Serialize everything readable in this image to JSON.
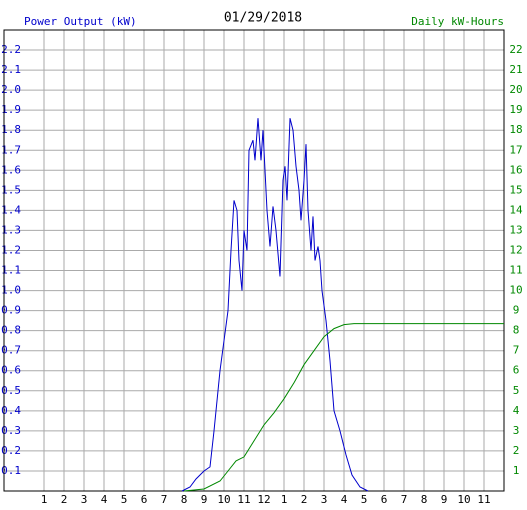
{
  "chart_data": {
    "type": "line",
    "title": "01/29/2018",
    "y_label": "Power Output (kW)",
    "y2_label": "Daily kW-Hours",
    "grid": true,
    "xlim": [
      -1,
      24
    ],
    "xticks": [
      1,
      2,
      3,
      4,
      5,
      6,
      7,
      8,
      9,
      10,
      11,
      12,
      {
        "value": 13,
        "label": "1"
      },
      {
        "value": 14,
        "label": "2"
      },
      {
        "value": 15,
        "label": "3"
      },
      {
        "value": 16,
        "label": "4"
      },
      {
        "value": 17,
        "label": "5"
      },
      {
        "value": 18,
        "label": "6"
      },
      {
        "value": 19,
        "label": "7"
      },
      {
        "value": 20,
        "label": "8"
      },
      {
        "value": 21,
        "label": "9"
      },
      {
        "value": 22,
        "label": "10"
      },
      {
        "value": 23,
        "label": "11"
      }
    ],
    "ylim": [
      0,
      2.3
    ],
    "yticks": [
      0.1,
      0.2,
      0.3,
      0.4,
      0.5,
      0.6,
      0.7,
      0.8,
      0.9,
      {
        "value": 1,
        "label": "1.0"
      },
      1.1,
      1.2,
      1.3,
      1.4,
      1.5,
      1.6,
      1.7,
      1.8,
      1.9,
      {
        "value": 2,
        "label": "2.0"
      },
      2.1,
      2.2
    ],
    "y2lim": [
      0,
      23
    ],
    "y2ticks": [
      1,
      2,
      3,
      4,
      5,
      6,
      7,
      8,
      9,
      10,
      11,
      12,
      13,
      14,
      15,
      16,
      17,
      18,
      19,
      20,
      21,
      22
    ],
    "y_color": "#0000cc",
    "y2_color": "#008800",
    "series": [
      {
        "color": "#0000cc",
        "axis": "y",
        "x": [
          7.9,
          8.3,
          8.6,
          9.0,
          9.3,
          9.5,
          9.8,
          10.0,
          10.2,
          10.35,
          10.5,
          10.65,
          10.75,
          10.9,
          11.0,
          11.15,
          11.25,
          11.45,
          11.55,
          11.7,
          11.85,
          11.95,
          12.15,
          12.3,
          12.45,
          12.6,
          12.8,
          12.95,
          13.05,
          13.15,
          13.3,
          13.45,
          13.6,
          13.75,
          13.85,
          14.0,
          14.1,
          14.2,
          14.35,
          14.45,
          14.55,
          14.7,
          14.8,
          14.9,
          15.1,
          15.3,
          15.5,
          15.8,
          16.1,
          16.4,
          16.8,
          17.2
        ],
        "values": [
          0,
          0.02,
          0.06,
          0.1,
          0.12,
          0.3,
          0.6,
          0.75,
          0.9,
          1.2,
          1.45,
          1.4,
          1.15,
          1.0,
          1.3,
          1.2,
          1.7,
          1.75,
          1.65,
          1.86,
          1.65,
          1.8,
          1.4,
          1.22,
          1.42,
          1.3,
          1.07,
          1.55,
          1.62,
          1.45,
          1.86,
          1.8,
          1.62,
          1.5,
          1.35,
          1.55,
          1.73,
          1.4,
          1.2,
          1.37,
          1.15,
          1.22,
          1.15,
          1.0,
          0.85,
          0.65,
          0.4,
          0.3,
          0.18,
          0.08,
          0.02,
          0
        ]
      },
      {
        "color": "#008800",
        "axis": "y2",
        "x": [
          8.0,
          9.0,
          9.8,
          10.2,
          10.6,
          11.0,
          11.5,
          12.0,
          12.5,
          13.0,
          13.5,
          14.0,
          14.5,
          15.0,
          15.5,
          16.0,
          16.5,
          17.0,
          24
        ],
        "values": [
          0,
          0.1,
          0.5,
          1.0,
          1.5,
          1.7,
          2.5,
          3.3,
          3.9,
          4.6,
          5.4,
          6.3,
          7.0,
          7.7,
          8.1,
          8.3,
          8.35,
          8.35,
          8.35
        ]
      }
    ]
  }
}
